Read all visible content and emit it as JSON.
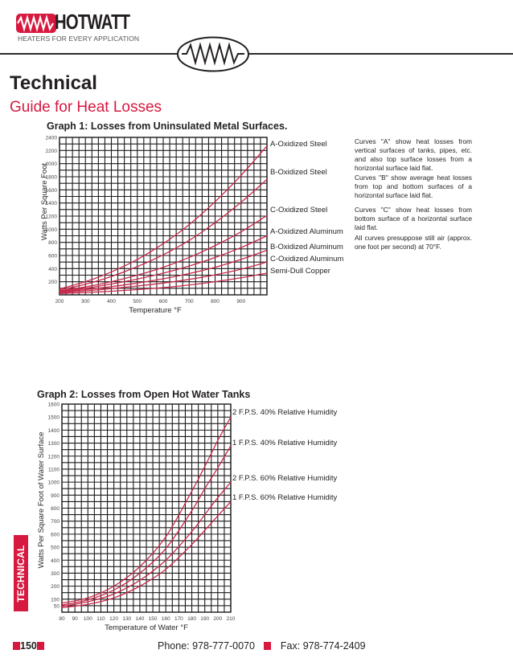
{
  "header": {
    "brand": "HOTWATT",
    "tagline": "HEATERS FOR EVERY APPLICATION",
    "brand_color": "#d7183f",
    "icon": "heating-element-icon"
  },
  "page": {
    "title": "Technical",
    "subtitle": "Guide for Heat Losses",
    "side_tab": "TECHNICAL"
  },
  "graph1": {
    "title": "Graph 1: Losses from Uninsulated Metal Surfaces.",
    "notes": [
      "Curves \"A\" show heat losses from vertical surfaces of tanks, pipes, etc. and also top surface losses from a horizontal surface laid flat.",
      "Curves \"B\" show average heat losses from top and bottom surfaces of a horizontal surface laid flat.",
      "Curves \"C\" show heat losses from bottom surface of a horizontal surface laid flat.",
      "All curves presuppose still air (approx. one foot per second) at 70°F."
    ]
  },
  "graph2": {
    "title": "Graph 2: Losses from Open Hot Water Tanks"
  },
  "footer": {
    "page_number": "150",
    "phone": "Phone: 978-777-0070",
    "fax": "Fax: 978-774-2409"
  },
  "chart_data": [
    {
      "type": "line",
      "title": "Graph 1: Losses from Uninsulated Metal Surfaces.",
      "xlabel": "Temperature °F",
      "ylabel": "Watts Per Square Foot",
      "xlim": [
        200,
        1000
      ],
      "ylim": [
        0,
        2400
      ],
      "x_ticks": [
        "200",
        "300",
        "400",
        "500",
        "600",
        "700",
        "800",
        "900"
      ],
      "y_ticks": [
        "200",
        "400",
        "600",
        "800",
        "1000",
        "1200",
        "1400",
        "1600",
        "1800",
        "2000",
        "2200",
        "2400"
      ],
      "grid": true,
      "legend_position": "right (inline labels at curve ends)",
      "x": [
        200,
        300,
        400,
        500,
        600,
        700,
        800,
        900,
        1000
      ],
      "series": [
        {
          "name": "A-Oxidized Steel",
          "values": [
            90,
            200,
            350,
            540,
            780,
            1070,
            1420,
            1820,
            2270
          ]
        },
        {
          "name": "B-Oxidized Steel",
          "values": [
            75,
            160,
            280,
            430,
            610,
            830,
            1100,
            1410,
            1760
          ]
        },
        {
          "name": "C-Oxidized Steel",
          "values": [
            60,
            120,
            200,
            300,
            420,
            570,
            750,
            960,
            1210
          ]
        },
        {
          "name": "A-Oxidized Aluminum",
          "values": [
            50,
            100,
            165,
            240,
            330,
            440,
            570,
            720,
            900
          ]
        },
        {
          "name": "B-Oxidized Aluminum",
          "values": [
            40,
            80,
            125,
            180,
            245,
            325,
            420,
            540,
            680
          ]
        },
        {
          "name": "C-Oxidized Aluminum",
          "values": [
            30,
            60,
            95,
            135,
            180,
            235,
            305,
            390,
            500
          ]
        },
        {
          "name": "Semi-Dull Copper",
          "values": [
            20,
            35,
            55,
            80,
            110,
            150,
            200,
            260,
            330
          ]
        }
      ]
    },
    {
      "type": "line",
      "title": "Graph 2: Losses from Open Hot Water Tanks",
      "xlabel": "Temperature of Water °F",
      "ylabel": "Watts Per Square Foot of Water Surface",
      "xlim": [
        80,
        210
      ],
      "ylim": [
        0,
        1600
      ],
      "x_ticks": [
        "80",
        "90",
        "100",
        "110",
        "120",
        "130",
        "140",
        "150",
        "160",
        "170",
        "180",
        "190",
        "200",
        "210"
      ],
      "y_ticks": [
        "50",
        "100",
        "200",
        "300",
        "400",
        "500",
        "600",
        "700",
        "800",
        "900",
        "1000",
        "1100",
        "1200",
        "1300",
        "1400",
        "1500",
        "1600"
      ],
      "grid": true,
      "legend_position": "right (inline labels at curve ends)",
      "x": [
        80,
        100,
        120,
        140,
        160,
        180,
        190,
        200,
        210
      ],
      "series": [
        {
          "name": "2 F.P.S. 40% Relative Humidity",
          "values": [
            70,
            110,
            200,
            350,
            580,
            930,
            1120,
            1320,
            1500
          ]
        },
        {
          "name": "1 F.P.S. 40% Relative Humidity",
          "values": [
            55,
            95,
            170,
            300,
            490,
            780,
            950,
            1110,
            1280
          ]
        },
        {
          "name": "2 F.P.S. 60% Relative Humidity",
          "values": [
            45,
            80,
            140,
            245,
            400,
            620,
            750,
            880,
            1000
          ]
        },
        {
          "name": "1 F.P.S. 60% Relative Humidity",
          "values": [
            35,
            60,
            110,
            200,
            330,
            520,
            630,
            740,
            850
          ]
        }
      ]
    }
  ]
}
